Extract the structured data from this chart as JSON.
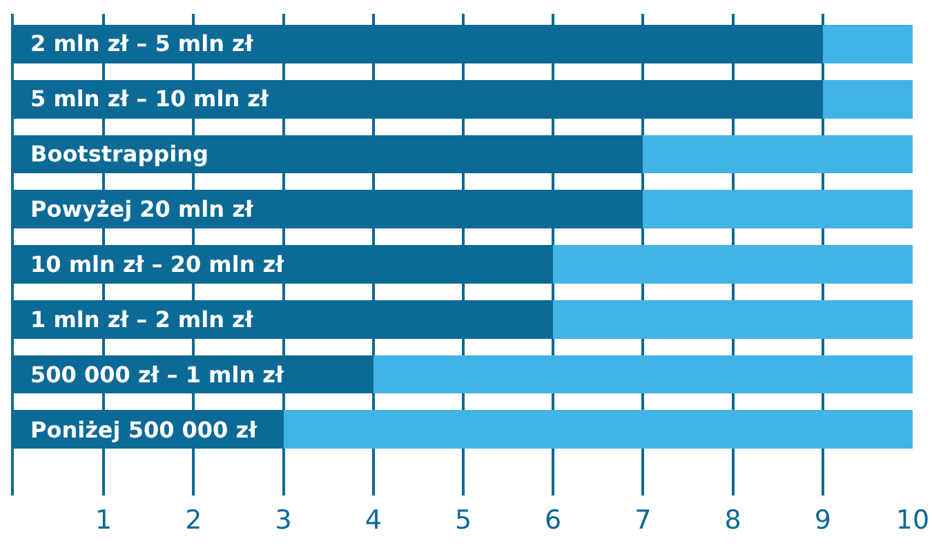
{
  "chart_data": {
    "type": "bar",
    "orientation": "horizontal",
    "stacked": true,
    "categories": [
      "2 mln zł – 5 mln zł",
      "5 mln zł – 10 mln zł",
      "Bootstrapping",
      "Powyżej 20 mln zł",
      "10 mln zł – 20 mln zł",
      "1 mln zł – 2 mln zł",
      "500 000 zł – 1 mln zł",
      "Poniżej 500 000 zł"
    ],
    "series": [
      {
        "color": "#0c6a96",
        "values": [
          9,
          9,
          7,
          7,
          6,
          6,
          4,
          3
        ]
      },
      {
        "color": "#42b3e5",
        "values": [
          1,
          1,
          3,
          3,
          4,
          4,
          6,
          7
        ]
      }
    ],
    "xlim": [
      0,
      10
    ],
    "xticks": [
      1,
      2,
      3,
      4,
      5,
      6,
      7,
      8,
      9,
      10
    ],
    "grid": "x"
  }
}
